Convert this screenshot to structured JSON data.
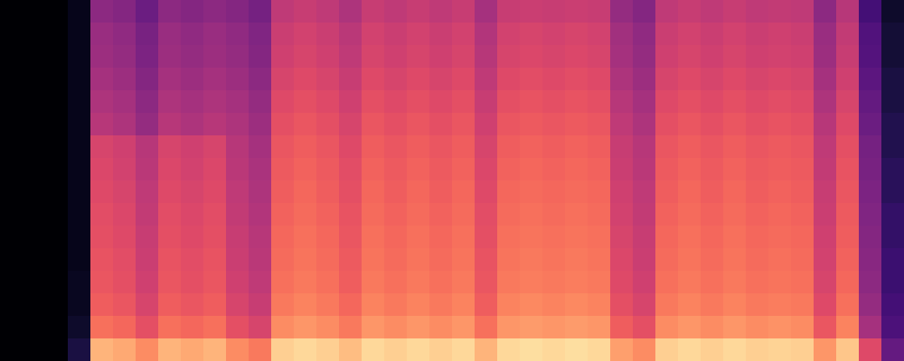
{
  "chart_data": {
    "type": "heatmap",
    "tick_labels": false,
    "zlim": [
      0,
      100
    ],
    "cells": [
      [
        0,
        0,
        0,
        5,
        40,
        38,
        32,
        40,
        38,
        40,
        38,
        34,
        52,
        54,
        52,
        48,
        54,
        52,
        54,
        52,
        54,
        46,
        54,
        55,
        54,
        55,
        54,
        42,
        38,
        52,
        54,
        52,
        54,
        52,
        53,
        52,
        40,
        50,
        22,
        8
      ],
      [
        0,
        0,
        0,
        5,
        43,
        41,
        35,
        43,
        41,
        43,
        41,
        37,
        55,
        57,
        55,
        51,
        57,
        55,
        57,
        55,
        57,
        49,
        57,
        58,
        57,
        58,
        57,
        45,
        41,
        55,
        57,
        55,
        57,
        55,
        56,
        55,
        43,
        53,
        25,
        10
      ],
      [
        0,
        0,
        0,
        5,
        44,
        42,
        36,
        44,
        42,
        44,
        42,
        38,
        56,
        58,
        56,
        52,
        58,
        56,
        58,
        56,
        58,
        50,
        58,
        59,
        58,
        59,
        58,
        46,
        42,
        56,
        58,
        56,
        58,
        56,
        57,
        56,
        44,
        54,
        26,
        10
      ],
      [
        0,
        0,
        0,
        5,
        46,
        44,
        38,
        46,
        44,
        46,
        44,
        40,
        58,
        60,
        58,
        54,
        60,
        58,
        60,
        58,
        60,
        52,
        60,
        61,
        60,
        61,
        60,
        48,
        44,
        58,
        60,
        58,
        60,
        58,
        59,
        58,
        46,
        56,
        28,
        12
      ],
      [
        0,
        0,
        0,
        5,
        48,
        46,
        40,
        48,
        46,
        48,
        46,
        42,
        60,
        62,
        60,
        56,
        62,
        60,
        62,
        60,
        62,
        54,
        62,
        63,
        62,
        63,
        62,
        50,
        46,
        60,
        62,
        60,
        62,
        60,
        61,
        60,
        48,
        58,
        30,
        12
      ],
      [
        0,
        0,
        0,
        5,
        50,
        48,
        42,
        50,
        48,
        50,
        48,
        44,
        62,
        64,
        62,
        58,
        64,
        62,
        64,
        62,
        64,
        56,
        64,
        65,
        64,
        65,
        64,
        52,
        48,
        62,
        64,
        62,
        64,
        62,
        63,
        62,
        50,
        60,
        32,
        14
      ],
      [
        0,
        0,
        0,
        5,
        58,
        56,
        50,
        58,
        56,
        58,
        50,
        46,
        64,
        66,
        64,
        60,
        66,
        64,
        66,
        64,
        66,
        58,
        66,
        67,
        66,
        67,
        66,
        54,
        50,
        64,
        66,
        64,
        66,
        64,
        65,
        64,
        52,
        62,
        34,
        14
      ],
      [
        0,
        0,
        0,
        5,
        59,
        57,
        51,
        59,
        57,
        59,
        51,
        47,
        65,
        67,
        65,
        61,
        67,
        65,
        67,
        65,
        67,
        59,
        67,
        68,
        67,
        68,
        67,
        55,
        51,
        65,
        67,
        65,
        67,
        65,
        66,
        65,
        53,
        63,
        35,
        16
      ],
      [
        0,
        0,
        0,
        5,
        60,
        58,
        52,
        60,
        58,
        60,
        52,
        48,
        66,
        68,
        66,
        62,
        68,
        66,
        68,
        66,
        68,
        60,
        68,
        69,
        68,
        69,
        68,
        56,
        52,
        66,
        68,
        66,
        68,
        66,
        67,
        66,
        54,
        64,
        36,
        16
      ],
      [
        0,
        0,
        0,
        5,
        61,
        59,
        53,
        61,
        59,
        61,
        53,
        49,
        67,
        69,
        67,
        63,
        69,
        67,
        69,
        67,
        69,
        61,
        69,
        70,
        69,
        70,
        69,
        57,
        53,
        67,
        69,
        67,
        69,
        67,
        68,
        67,
        55,
        65,
        37,
        18
      ],
      [
        0,
        0,
        0,
        5,
        62,
        60,
        54,
        62,
        60,
        62,
        54,
        50,
        68,
        70,
        68,
        64,
        70,
        68,
        70,
        68,
        70,
        62,
        70,
        71,
        70,
        71,
        70,
        58,
        54,
        68,
        70,
        68,
        70,
        68,
        69,
        68,
        56,
        66,
        38,
        18
      ],
      [
        0,
        0,
        0,
        5,
        63,
        61,
        55,
        63,
        61,
        63,
        55,
        51,
        69,
        71,
        69,
        65,
        71,
        69,
        71,
        69,
        71,
        63,
        71,
        72,
        71,
        72,
        71,
        59,
        55,
        69,
        71,
        69,
        71,
        69,
        70,
        69,
        57,
        67,
        39,
        20
      ],
      [
        0,
        0,
        0,
        6,
        64,
        62,
        56,
        64,
        62,
        64,
        56,
        52,
        70,
        72,
        70,
        66,
        72,
        70,
        72,
        70,
        72,
        64,
        72,
        73,
        72,
        73,
        72,
        60,
        56,
        70,
        72,
        70,
        72,
        70,
        71,
        70,
        58,
        68,
        40,
        20
      ],
      [
        0,
        0,
        0,
        6,
        66,
        64,
        58,
        66,
        64,
        66,
        58,
        54,
        72,
        74,
        72,
        68,
        74,
        72,
        74,
        72,
        74,
        66,
        74,
        75,
        74,
        75,
        74,
        62,
        58,
        72,
        74,
        72,
        74,
        72,
        73,
        72,
        60,
        70,
        42,
        22
      ],
      [
        0,
        0,
        0,
        8,
        70,
        68,
        62,
        70,
        68,
        70,
        62,
        58,
        76,
        78,
        76,
        72,
        78,
        76,
        78,
        76,
        78,
        70,
        78,
        79,
        78,
        79,
        78,
        66,
        62,
        76,
        78,
        76,
        78,
        76,
        77,
        76,
        64,
        74,
        46,
        24
      ],
      [
        0,
        0,
        0,
        12,
        84,
        82,
        76,
        84,
        82,
        84,
        76,
        72,
        90,
        92,
        90,
        86,
        92,
        90,
        92,
        90,
        92,
        84,
        92,
        93,
        92,
        93,
        92,
        80,
        76,
        90,
        92,
        90,
        92,
        90,
        91,
        90,
        78,
        88,
        60,
        30
      ]
    ]
  }
}
